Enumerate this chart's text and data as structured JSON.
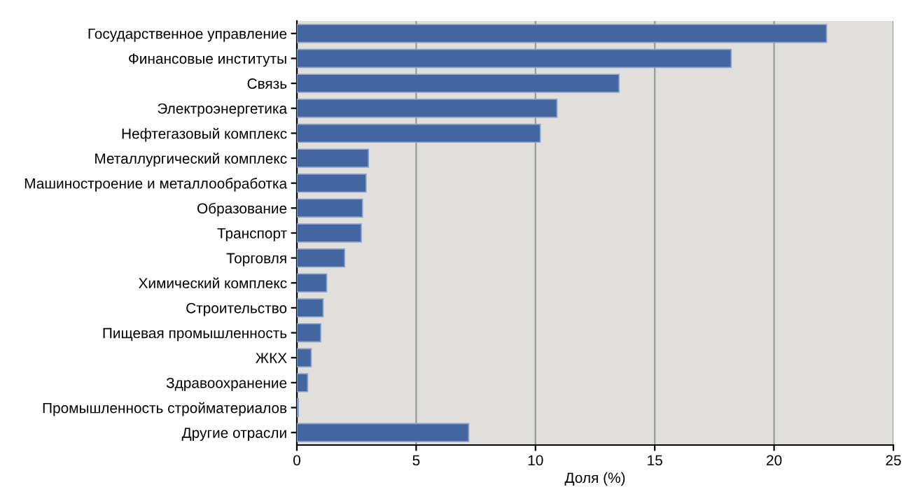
{
  "chart_data": {
    "type": "bar",
    "orientation": "horizontal",
    "xlabel": "Доля (%)",
    "categories": [
      "Государственное управление",
      "Финансовые институты",
      "Связь",
      "Электроэнергетика",
      "Нефтегазовый комплекс",
      "Металлургический комплекс",
      "Машиностроение и металлообработка",
      "Образование",
      "Транспорт",
      "Торговля",
      "Химический комплекс",
      "Строительство",
      "Пищевая промышленность",
      "ЖКХ",
      "Здравоохранение",
      "Промышленность стройматериалов",
      "Другие отрасли"
    ],
    "values": [
      22.2,
      18.2,
      13.5,
      10.9,
      10.2,
      3.0,
      2.9,
      2.75,
      2.7,
      2.0,
      1.25,
      1.1,
      1.0,
      0.6,
      0.45,
      0.06,
      7.2
    ],
    "color": "#4466a0",
    "xlim": [
      0,
      25
    ],
    "xticks": [
      0,
      5,
      10,
      15,
      20,
      25
    ],
    "grid": "x"
  }
}
